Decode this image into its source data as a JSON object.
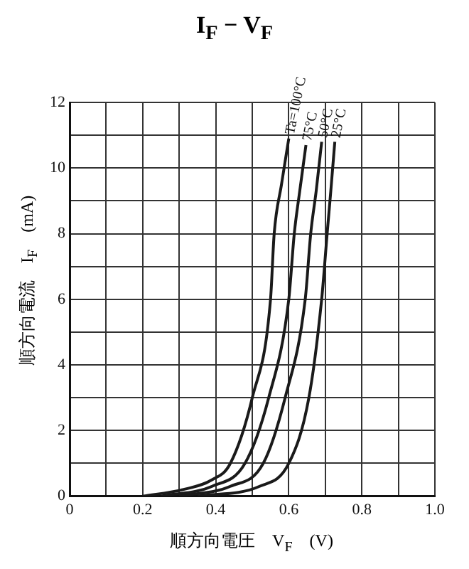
{
  "chart_data": {
    "type": "line",
    "title": "I$_{F}$ − V$_{F}$",
    "xlabel": "順方向電圧　V$_{F}$　(V)",
    "ylabel": "順方向電流　I$_{F}$　(mA)",
    "xlim": [
      0,
      1.0
    ],
    "ylim": [
      0,
      12
    ],
    "xticks": [
      0,
      {
        "value": 0.1,
        "label": null
      },
      0.2,
      {
        "value": 0.3,
        "label": null
      },
      0.4,
      {
        "value": 0.5,
        "label": null
      },
      0.6,
      {
        "value": 0.7,
        "label": null
      },
      0.8,
      {
        "value": 0.9,
        "label": null
      },
      {
        "value": 1.0,
        "label": "1.0"
      }
    ],
    "yticks": [
      0,
      {
        "value": 1,
        "label": null
      },
      2,
      {
        "value": 3,
        "label": null
      },
      4,
      {
        "value": 5,
        "label": null
      },
      6,
      {
        "value": 7,
        "label": null
      },
      8,
      {
        "value": 9,
        "label": null
      },
      10,
      {
        "value": 11,
        "label": null
      },
      12
    ],
    "grid": true,
    "legend": false,
    "marker": "none",
    "line_style": "solid",
    "series": [
      {
        "name": "Ta=100°C",
        "color": "#1a1a1a",
        "x": [
          0.2,
          0.31,
          0.39,
          0.44,
          0.5,
          0.55,
          0.56,
          0.58,
          0.6
        ],
        "values": [
          0,
          0.2,
          0.5,
          1,
          3,
          6,
          8,
          9.5,
          10.9
        ]
      },
      {
        "name": "75°C",
        "color": "#1a1a1a",
        "x": [
          0.25,
          0.39,
          0.48,
          0.545,
          0.6,
          0.615,
          0.63,
          0.647
        ],
        "values": [
          0,
          0.3,
          1,
          3,
          6,
          8,
          9.3,
          10.7
        ]
      },
      {
        "name": "50°C",
        "color": "#1a1a1a",
        "x": [
          0.3,
          0.44,
          0.53,
          0.59,
          0.645,
          0.66,
          0.675,
          0.69
        ],
        "values": [
          0,
          0.3,
          1,
          3,
          6,
          8,
          9.3,
          10.8
        ]
      },
      {
        "name": "25°C",
        "color": "#1a1a1a",
        "x": [
          0.35,
          0.52,
          0.6,
          0.655,
          0.69,
          0.705,
          0.715,
          0.726
        ],
        "values": [
          0,
          0.3,
          1,
          3,
          6,
          8,
          9.3,
          10.8
        ]
      }
    ]
  }
}
